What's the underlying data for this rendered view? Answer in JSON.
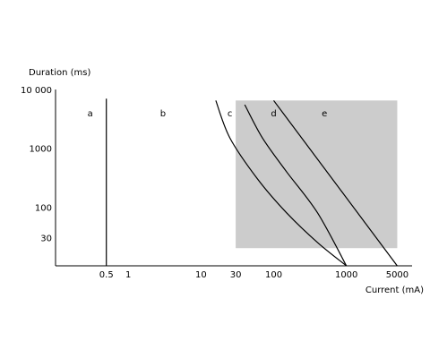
{
  "chart_data": {
    "type": "line",
    "title": "",
    "xlabel": "Current (mA)",
    "ylabel": "Duration (ms)",
    "x_scale": "log",
    "y_scale": "log",
    "x_ticks": [
      {
        "value": 0.5,
        "label": "0.5"
      },
      {
        "value": 1,
        "label": "1"
      },
      {
        "value": 10,
        "label": "10"
      },
      {
        "value": 30,
        "label": "30"
      },
      {
        "value": 100,
        "label": "100"
      },
      {
        "value": 1000,
        "label": "1000"
      },
      {
        "value": 5000,
        "label": "5000"
      }
    ],
    "y_ticks": [
      {
        "value": 30,
        "label": "30"
      },
      {
        "value": 100,
        "label": "100"
      },
      {
        "value": 1000,
        "label": "1000"
      },
      {
        "value": 10000,
        "label": "10 000"
      }
    ],
    "xlim": [
      0.1,
      8000
    ],
    "ylim": [
      10,
      10000
    ],
    "shaded_region": {
      "x": [
        30,
        5000
      ],
      "y": [
        20,
        6500
      ]
    },
    "series": [
      {
        "values": [
          [
            0.5,
            10
          ],
          [
            0.5,
            7000
          ]
        ],
        "color": "#000000"
      },
      {
        "values": [
          [
            16,
            6500
          ],
          [
            25,
            1500
          ],
          [
            60,
            300
          ],
          [
            150,
            80
          ],
          [
            400,
            25
          ],
          [
            1000,
            10
          ]
        ],
        "color": "#000000"
      },
      {
        "values": [
          [
            40,
            5500
          ],
          [
            70,
            1500
          ],
          [
            150,
            400
          ],
          [
            400,
            80
          ],
          [
            1000,
            10
          ]
        ],
        "color": "#000000"
      },
      {
        "values": [
          [
            100,
            6500
          ],
          [
            5000,
            10
          ]
        ],
        "color": "#000000"
      }
    ],
    "region_labels": [
      {
        "text": "a",
        "x": 0.3,
        "y": 4000
      },
      {
        "text": "b",
        "x": 3,
        "y": 4000
      },
      {
        "text": "c",
        "x": 25,
        "y": 4000
      },
      {
        "text": "d",
        "x": 100,
        "y": 4000
      },
      {
        "text": "e",
        "x": 500,
        "y": 4000
      }
    ],
    "grid": false,
    "legend": "none"
  }
}
